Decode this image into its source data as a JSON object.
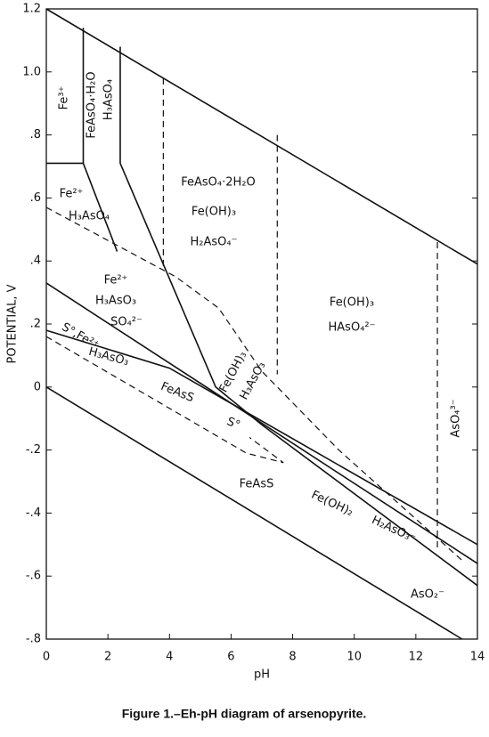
{
  "chart_data": {
    "type": "line",
    "caption": "Figure 1.–Eh-pH diagram of arsenopyrite.",
    "x_label": "pH",
    "y_label": "POTENTIAL, V",
    "xlim": [
      0,
      14
    ],
    "ylim": [
      -0.8,
      1.2
    ],
    "xticks": [
      0,
      2,
      4,
      6,
      8,
      10,
      12,
      14
    ],
    "yticks": [
      {
        "value": -0.8,
        "label": "-.8"
      },
      {
        "value": -0.6,
        "label": "-.6"
      },
      {
        "value": -0.4,
        "label": "-.4"
      },
      {
        "value": -0.2,
        "label": "-.2"
      },
      0,
      {
        "value": 0.2,
        "label": ".2"
      },
      {
        "value": 0.4,
        "label": ".4"
      },
      {
        "value": 0.6,
        "label": ".6"
      },
      {
        "value": 0.8,
        "label": ".8"
      },
      {
        "value": 1,
        "label": "1.0"
      },
      1.2
    ],
    "color": "#111111",
    "series": [
      {
        "style": "solid",
        "x": [
          0,
          14
        ],
        "values": [
          1.2,
          0.39
        ]
      },
      {
        "style": "solid",
        "x": [
          0,
          13.5
        ],
        "values": [
          0,
          -0.8
        ]
      },
      {
        "style": "solid",
        "x": [
          0,
          1.2,
          1.2
        ],
        "values": [
          0.71,
          0.71,
          1.14
        ]
      },
      {
        "style": "solid",
        "x": [
          2.4,
          2.4,
          5.5,
          7.0
        ],
        "values": [
          1.08,
          0.71,
          0.0,
          -0.12
        ]
      },
      {
        "style": "solid",
        "x": [
          1.2,
          2.3
        ],
        "values": [
          0.71,
          0.43
        ]
      },
      {
        "style": "solid",
        "x": [
          0,
          14
        ],
        "values": [
          0.33,
          -0.56
        ]
      },
      {
        "style": "solid",
        "x": [
          0,
          4.0,
          14
        ],
        "values": [
          0.18,
          0.06,
          -0.5
        ]
      },
      {
        "style": "solid",
        "x": [
          7.0,
          14
        ],
        "values": [
          -0.12,
          -0.63
        ]
      },
      {
        "style": "dashed",
        "x": [
          3.8,
          3.8
        ],
        "values": [
          0.98,
          0.38
        ]
      },
      {
        "style": "dashed",
        "x": [
          7.5,
          7.5
        ],
        "values": [
          0.8,
          0.04
        ]
      },
      {
        "style": "dashed",
        "x": [
          12.7,
          12.7
        ],
        "values": [
          0.46,
          -0.52
        ]
      },
      {
        "style": "dashed",
        "x": [
          0,
          4.2,
          5.6,
          7.0,
          9.5,
          13.5
        ],
        "values": [
          0.57,
          0.35,
          0.25,
          0.05,
          -0.2,
          -0.55
        ]
      },
      {
        "style": "dashed",
        "x": [
          0,
          6.5,
          7.7,
          6.6
        ],
        "values": [
          0.16,
          -0.21,
          -0.24,
          -0.16
        ]
      }
    ],
    "annotations": [
      "Fe³⁺",
      "FeAsO₄·H₂O",
      "H₃AsO₄",
      "Fe²⁺",
      "H₃AsO₄",
      "FeAsO₄·2H₂O",
      "Fe(OH)₃",
      "H₂AsO₄⁻",
      "Fe²⁺",
      "H₃AsO₃",
      "SO₄²⁻",
      "S°,Fe²⁺",
      "H₃AsO₃",
      "Fe(OH)₃",
      "HAsO₄²⁻",
      "Fe(OH)₃",
      "H₃AsO₃",
      "FeAsS",
      "S°",
      "FeAsS",
      "Fe(OH)₂",
      "H₂AsO₃⁻",
      "AsO₄³⁻",
      "AsO₂⁻"
    ]
  }
}
